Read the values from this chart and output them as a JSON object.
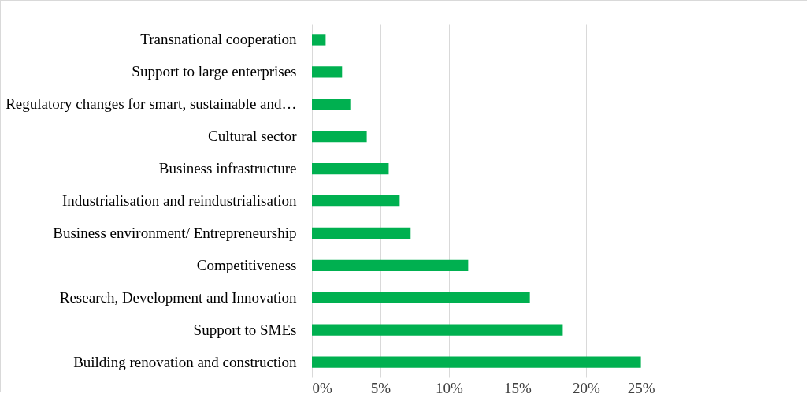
{
  "chart_data": {
    "type": "bar",
    "orientation": "horizontal",
    "categories": [
      "Transnational cooperation",
      "Support to large enterprises",
      "Regulatory changes for smart, sustainable and…",
      "Cultural sector",
      "Business infrastructure",
      "Industrialisation and reindustrialisation",
      "Business environment/ Entrepreneurship",
      "Competitiveness",
      "Research, Development and Innovation",
      "Support to SMEs",
      "Building renovation and construction"
    ],
    "values": [
      1.0,
      2.2,
      2.8,
      4.0,
      5.6,
      6.4,
      7.2,
      11.4,
      15.9,
      18.3,
      24.0
    ],
    "color": "#00b050",
    "xlim": [
      0,
      25
    ],
    "xticks": [
      {
        "value": 0,
        "label": "0%"
      },
      {
        "value": 5,
        "label": "5%"
      },
      {
        "value": 10,
        "label": "10%"
      },
      {
        "value": 15,
        "label": "15%"
      },
      {
        "value": 20,
        "label": "20%"
      },
      {
        "value": 25,
        "label": "25%"
      }
    ],
    "grid": "x"
  }
}
